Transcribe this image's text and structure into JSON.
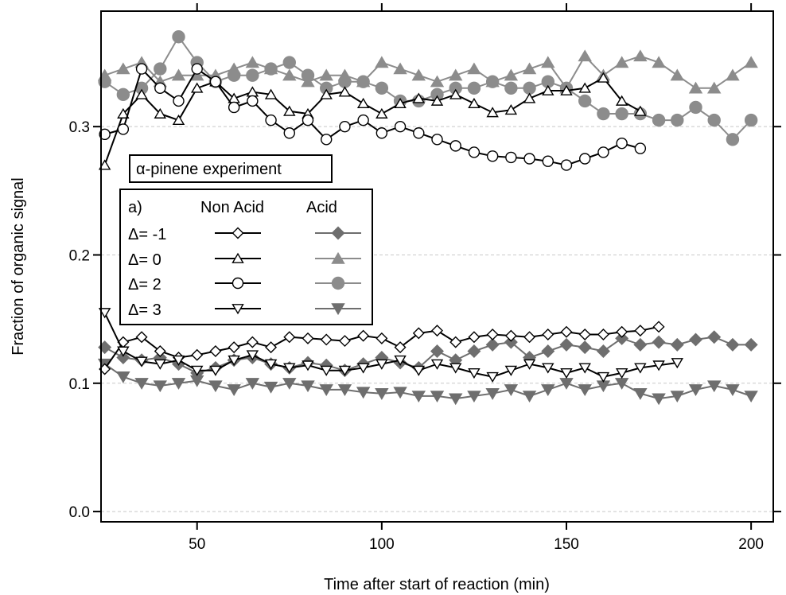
{
  "chart_data": {
    "type": "line",
    "title": "",
    "xlabel": "Time after start of reaction (min)",
    "ylabel": "Fraction of organic signal",
    "xlim": [
      24,
      206
    ],
    "ylim": [
      -0.008,
      0.39
    ],
    "xticks": [
      50,
      100,
      150,
      200
    ],
    "yticks": [
      0.0,
      0.1,
      0.2,
      0.3
    ],
    "ytick_labels": [
      "0.0",
      "0.1",
      "0.2",
      "0.3"
    ],
    "grid": "horizontal dashed",
    "annotation": "α-pinene experiment",
    "legend": {
      "placement": "middle-left",
      "title": "a)",
      "col1": "Non Acid",
      "col2": "Acid",
      "rows": [
        "Δ= -1",
        "Δ= 0",
        "Δ= 2",
        "Δ= 3"
      ]
    },
    "colors": {
      "non_acid": "#000000",
      "acid": "#8c8c8c",
      "acid_dark": "#6e6e6e"
    },
    "series": [
      {
        "name": "Δ= -1 Non Acid",
        "marker": "diamond-open",
        "group": "non_acid",
        "x": [
          25,
          30,
          35,
          40,
          45,
          50,
          55,
          60,
          65,
          70,
          75,
          80,
          85,
          90,
          95,
          100,
          105,
          110,
          115,
          120,
          125,
          130,
          135,
          140,
          145,
          150,
          155,
          160,
          165,
          170,
          175
        ],
        "y": [
          0.111,
          0.132,
          0.136,
          0.125,
          0.12,
          0.122,
          0.125,
          0.128,
          0.132,
          0.128,
          0.136,
          0.135,
          0.134,
          0.133,
          0.137,
          0.135,
          0.128,
          0.139,
          0.141,
          0.132,
          0.136,
          0.138,
          0.137,
          0.136,
          0.138,
          0.14,
          0.138,
          0.138,
          0.14,
          0.141,
          0.144
        ]
      },
      {
        "name": "Δ= 0 Non Acid",
        "marker": "triangle-open",
        "group": "non_acid",
        "x": [
          25,
          30,
          35,
          40,
          45,
          50,
          55,
          60,
          65,
          70,
          75,
          80,
          85,
          90,
          95,
          100,
          105,
          110,
          115,
          120,
          125,
          130,
          135,
          140,
          145,
          150,
          155,
          160,
          165,
          170
        ],
        "y": [
          0.27,
          0.31,
          0.325,
          0.31,
          0.305,
          0.33,
          0.335,
          0.322,
          0.327,
          0.325,
          0.312,
          0.31,
          0.325,
          0.327,
          0.318,
          0.31,
          0.318,
          0.322,
          0.32,
          0.325,
          0.318,
          0.311,
          0.313,
          0.322,
          0.328,
          0.328,
          0.33,
          0.338,
          0.32,
          0.312
        ]
      },
      {
        "name": "Δ= 2 Non Acid",
        "marker": "circle-open",
        "group": "non_acid",
        "x": [
          25,
          30,
          35,
          40,
          45,
          50,
          55,
          60,
          65,
          70,
          75,
          80,
          85,
          90,
          95,
          100,
          105,
          110,
          115,
          120,
          125,
          130,
          135,
          140,
          145,
          150,
          155,
          160,
          165,
          170
        ],
        "y": [
          0.294,
          0.298,
          0.345,
          0.33,
          0.32,
          0.345,
          0.335,
          0.315,
          0.32,
          0.305,
          0.295,
          0.305,
          0.29,
          0.3,
          0.305,
          0.295,
          0.3,
          0.295,
          0.29,
          0.285,
          0.28,
          0.277,
          0.276,
          0.275,
          0.273,
          0.27,
          0.275,
          0.28,
          0.287,
          0.283
        ]
      },
      {
        "name": "Δ= 3 Non Acid",
        "marker": "triangle-down-open",
        "group": "non_acid",
        "x": [
          25,
          30,
          35,
          40,
          45,
          50,
          55,
          60,
          65,
          70,
          75,
          80,
          85,
          90,
          95,
          100,
          105,
          110,
          115,
          120,
          125,
          130,
          135,
          140,
          145,
          150,
          155,
          160,
          165,
          170,
          175,
          180
        ],
        "y": [
          0.155,
          0.125,
          0.117,
          0.115,
          0.118,
          0.11,
          0.11,
          0.118,
          0.122,
          0.115,
          0.112,
          0.114,
          0.11,
          0.11,
          0.112,
          0.115,
          0.118,
          0.11,
          0.115,
          0.112,
          0.108,
          0.105,
          0.11,
          0.115,
          0.112,
          0.108,
          0.112,
          0.105,
          0.108,
          0.112,
          0.114,
          0.116
        ]
      },
      {
        "name": "Δ= -1 Acid",
        "marker": "diamond-filled",
        "group": "acid",
        "x": [
          25,
          30,
          35,
          40,
          45,
          50,
          55,
          60,
          65,
          70,
          75,
          80,
          85,
          90,
          95,
          100,
          105,
          110,
          115,
          120,
          125,
          130,
          135,
          140,
          145,
          150,
          155,
          160,
          165,
          170,
          175,
          180,
          185,
          190,
          195,
          200
        ],
        "y": [
          0.128,
          0.12,
          0.118,
          0.12,
          0.115,
          0.108,
          0.112,
          0.118,
          0.12,
          0.115,
          0.112,
          0.116,
          0.114,
          0.11,
          0.115,
          0.12,
          0.116,
          0.112,
          0.125,
          0.118,
          0.125,
          0.13,
          0.132,
          0.12,
          0.125,
          0.13,
          0.128,
          0.125,
          0.135,
          0.13,
          0.132,
          0.13,
          0.134,
          0.136,
          0.13,
          0.13
        ]
      },
      {
        "name": "Δ= 0 Acid",
        "marker": "triangle-filled",
        "group": "acid",
        "x": [
          25,
          30,
          35,
          40,
          45,
          50,
          55,
          60,
          65,
          70,
          75,
          80,
          85,
          90,
          95,
          100,
          105,
          110,
          115,
          120,
          125,
          130,
          135,
          140,
          145,
          150,
          155,
          160,
          165,
          170,
          175,
          180,
          185,
          190,
          195,
          200
        ],
        "y": [
          0.34,
          0.345,
          0.35,
          0.335,
          0.34,
          0.34,
          0.34,
          0.345,
          0.35,
          0.345,
          0.34,
          0.335,
          0.34,
          0.34,
          0.335,
          0.35,
          0.345,
          0.34,
          0.335,
          0.34,
          0.345,
          0.335,
          0.34,
          0.345,
          0.35,
          0.33,
          0.355,
          0.34,
          0.35,
          0.355,
          0.35,
          0.34,
          0.33,
          0.33,
          0.34,
          0.35
        ]
      },
      {
        "name": "Δ= 2 Acid",
        "marker": "circle-filled",
        "group": "acid",
        "x": [
          25,
          30,
          35,
          40,
          45,
          50,
          55,
          60,
          65,
          70,
          75,
          80,
          85,
          90,
          95,
          100,
          105,
          110,
          115,
          120,
          125,
          130,
          135,
          140,
          145,
          150,
          155,
          160,
          165,
          170,
          175,
          180,
          185,
          190,
          195,
          200
        ],
        "y": [
          0.335,
          0.325,
          0.33,
          0.345,
          0.37,
          0.35,
          0.335,
          0.34,
          0.34,
          0.345,
          0.35,
          0.34,
          0.33,
          0.335,
          0.335,
          0.33,
          0.32,
          0.32,
          0.325,
          0.33,
          0.33,
          0.335,
          0.33,
          0.33,
          0.335,
          0.33,
          0.32,
          0.31,
          0.31,
          0.31,
          0.305,
          0.305,
          0.315,
          0.305,
          0.29,
          0.305
        ]
      },
      {
        "name": "Δ= 3 Acid",
        "marker": "triangle-down-filled",
        "group": "acid",
        "x": [
          25,
          30,
          35,
          40,
          45,
          50,
          55,
          60,
          65,
          70,
          75,
          80,
          85,
          90,
          95,
          100,
          105,
          110,
          115,
          120,
          125,
          130,
          135,
          140,
          145,
          150,
          155,
          160,
          165,
          170,
          175,
          180,
          185,
          190,
          195,
          200
        ],
        "y": [
          0.115,
          0.105,
          0.1,
          0.098,
          0.1,
          0.102,
          0.098,
          0.095,
          0.1,
          0.097,
          0.1,
          0.098,
          0.095,
          0.095,
          0.093,
          0.092,
          0.093,
          0.09,
          0.09,
          0.088,
          0.09,
          0.092,
          0.095,
          0.09,
          0.095,
          0.1,
          0.095,
          0.098,
          0.1,
          0.092,
          0.088,
          0.09,
          0.095,
          0.098,
          0.095,
          0.09
        ]
      }
    ]
  }
}
